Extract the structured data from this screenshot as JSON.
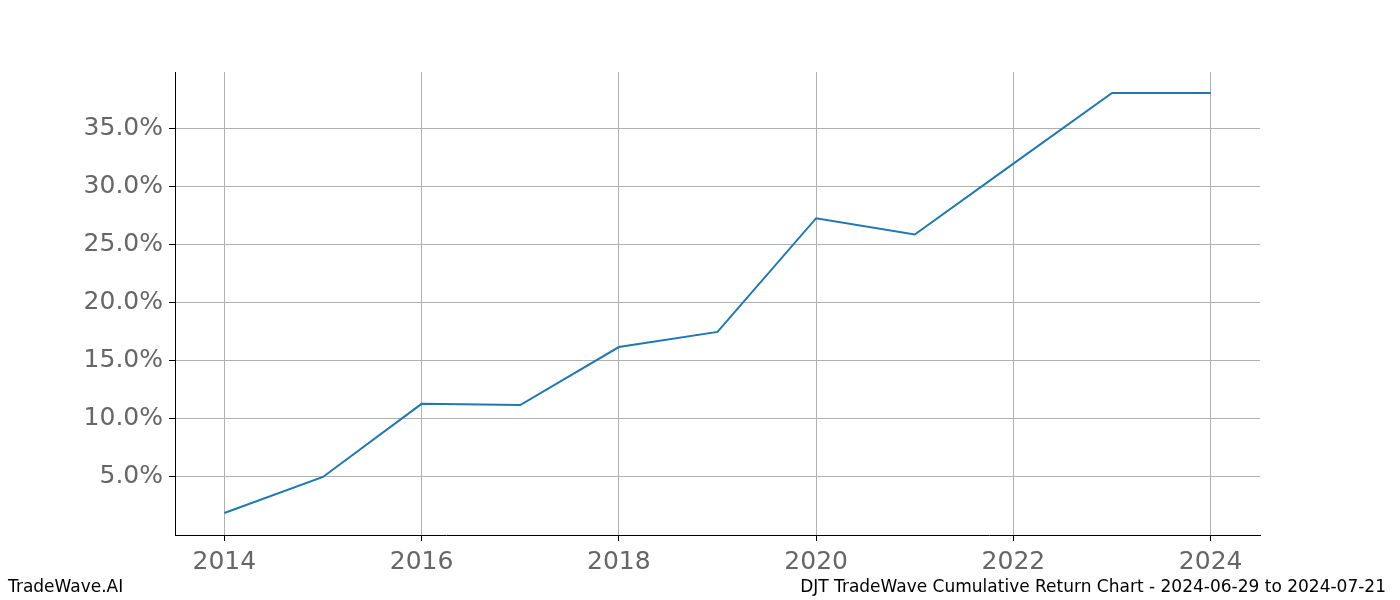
{
  "chart_data": {
    "type": "line",
    "x": [
      2014,
      2015,
      2016,
      2017,
      2018,
      2019,
      2020,
      2021,
      2022,
      2023,
      2024
    ],
    "values": [
      1.9,
      5.0,
      11.3,
      11.2,
      16.2,
      17.5,
      27.3,
      25.9,
      32.0,
      38.1,
      38.1
    ],
    "color": "#1f77b4",
    "xlim": [
      2013.5,
      2024.5
    ],
    "ylim": [
      0,
      39.9
    ],
    "xticks": [
      2014,
      2016,
      2018,
      2020,
      2022,
      2024
    ],
    "yticks": [
      {
        "value": 5,
        "label": "5.0%"
      },
      {
        "value": 10,
        "label": "10.0%"
      },
      {
        "value": 15,
        "label": "15.0%"
      },
      {
        "value": 20,
        "label": "20.0%"
      },
      {
        "value": 25,
        "label": "25.0%"
      },
      {
        "value": 30,
        "label": "30.0%"
      },
      {
        "value": 35,
        "label": "35.0%"
      }
    ],
    "grid": true,
    "footer_left": "TradeWave.AI",
    "footer_right": "DJT TradeWave Cumulative Return Chart - 2024-06-29 to 2024-07-21"
  }
}
